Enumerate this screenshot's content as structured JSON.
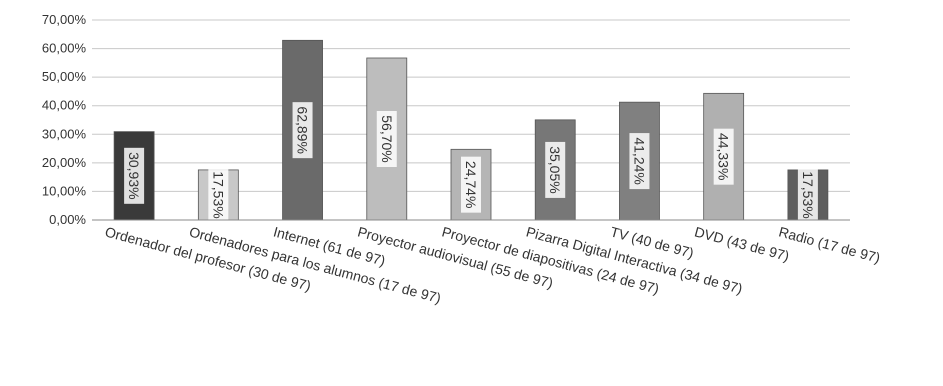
{
  "chart_data": {
    "type": "bar",
    "categories": [
      "Ordenador del profesor (30 de 97)",
      "Ordenadores para los alumnos (17 de 97)",
      "Internet (61 de 97)",
      "Proyector audiovisual (55 de 97)",
      "Proyector de diapositivas (24 de 97)",
      "Pizarra Digital Interactiva (34 de 97)",
      "TV (40 de 97)",
      "DVD (43 de 97)",
      "Radio (17 de 97)"
    ],
    "values": [
      30.93,
      17.53,
      62.89,
      56.7,
      24.74,
      35.05,
      41.24,
      44.33,
      17.53
    ],
    "data_labels": [
      "30,93%",
      "17,53%",
      "62,89%",
      "56,70%",
      "24,74%",
      "35,05%",
      "41,24%",
      "44,33%",
      "17,53%"
    ],
    "y_ticks": [
      "0,00%",
      "10,00%",
      "20,00%",
      "30,00%",
      "40,00%",
      "50,00%",
      "60,00%",
      "70,00%"
    ],
    "ylim": [
      0,
      70
    ],
    "grid": true,
    "bar_colors": [
      "#3a3a3a",
      "#c8c8c8",
      "#6a6a6a",
      "#bdbdbd",
      "#b5b5b5",
      "#777777",
      "#808080",
      "#b0b0b0",
      "#5e5e5e"
    ],
    "title": "",
    "xlabel": "",
    "ylabel": ""
  }
}
